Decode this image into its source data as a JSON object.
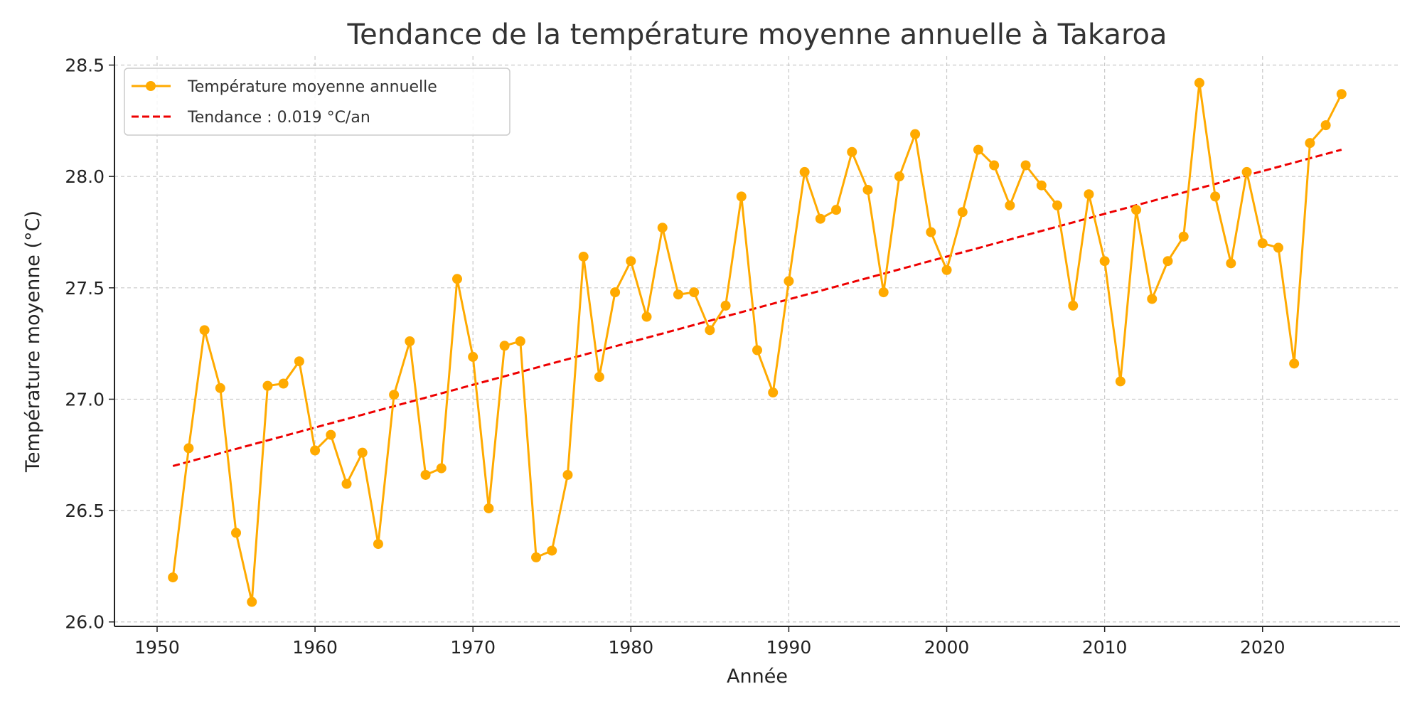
{
  "chart_data": {
    "type": "line",
    "title": "Tendance de la température moyenne annuelle à Takaroa",
    "xlabel": "Année",
    "ylabel": "Température moyenne (°C)",
    "xlim": [
      1947.3,
      2028.7
    ],
    "ylim": [
      25.98,
      28.54
    ],
    "xticks": [
      1950,
      1960,
      1970,
      1980,
      1990,
      2000,
      2010,
      2020
    ],
    "yticks": [
      "26.0",
      "26.5",
      "27.0",
      "27.5",
      "28.0",
      "28.5"
    ],
    "grid": true,
    "legend_position": "top-left",
    "x": [
      1951,
      1952,
      1953,
      1954,
      1955,
      1956,
      1957,
      1958,
      1959,
      1960,
      1961,
      1962,
      1963,
      1964,
      1965,
      1966,
      1967,
      1968,
      1969,
      1970,
      1971,
      1972,
      1973,
      1974,
      1975,
      1976,
      1977,
      1978,
      1979,
      1980,
      1981,
      1982,
      1983,
      1984,
      1985,
      1986,
      1987,
      1988,
      1989,
      1990,
      1991,
      1992,
      1993,
      1994,
      1995,
      1996,
      1997,
      1998,
      1999,
      2000,
      2001,
      2002,
      2003,
      2004,
      2005,
      2006,
      2007,
      2008,
      2009,
      2010,
      2011,
      2012,
      2013,
      2014,
      2015,
      2016,
      2017,
      2018,
      2019,
      2020,
      2021,
      2022,
      2023,
      2024,
      2025
    ],
    "series": [
      {
        "name": "Température moyenne annuelle",
        "color": "#FFAA00",
        "marker": "circle",
        "values": [
          26.2,
          26.78,
          27.31,
          27.05,
          26.4,
          26.09,
          27.06,
          27.07,
          27.17,
          26.77,
          26.84,
          26.62,
          26.76,
          26.35,
          27.02,
          27.26,
          26.66,
          26.69,
          27.54,
          27.19,
          26.51,
          27.24,
          27.26,
          26.29,
          26.32,
          26.66,
          27.64,
          27.1,
          27.48,
          27.62,
          27.37,
          27.77,
          27.47,
          27.48,
          27.31,
          27.42,
          27.91,
          27.22,
          27.03,
          27.53,
          28.02,
          27.81,
          27.85,
          28.11,
          27.94,
          27.48,
          28.0,
          28.19,
          27.75,
          27.58,
          27.84,
          28.12,
          28.05,
          27.87,
          28.05,
          27.96,
          27.87,
          27.42,
          27.92,
          27.62,
          27.08,
          27.85,
          27.45,
          27.62,
          27.73,
          28.42,
          27.91,
          27.61,
          28.02,
          27.7,
          27.68,
          27.16,
          28.15,
          28.23,
          28.37
        ]
      },
      {
        "name": "Tendance : 0.019 °C/an",
        "color": "#EE0000",
        "style": "dashed",
        "x": [
          1951,
          2025
        ],
        "values": [
          26.7,
          28.12
        ]
      }
    ]
  }
}
